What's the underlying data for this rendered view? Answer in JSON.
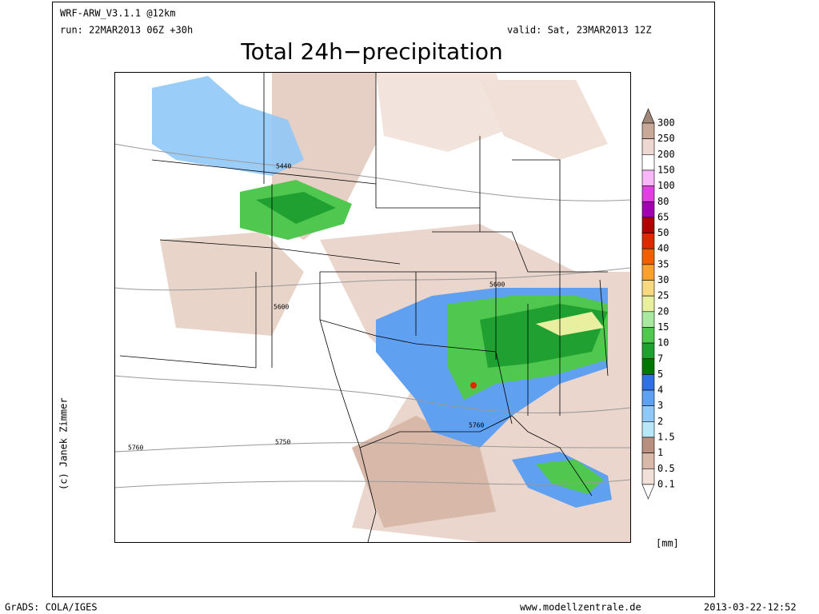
{
  "header": {
    "model": "WRF-ARW_V3.1.1 @12km",
    "run": "run: 22MAR2013 06Z +30h",
    "valid": "valid: Sat, 23MAR2013 12Z"
  },
  "title": "Total 24h−precipitation",
  "contour_labels": [
    "5440",
    "5600",
    "5600",
    "5760",
    "5760",
    "5750"
  ],
  "colorbar": {
    "levels": [
      300,
      250,
      200,
      150,
      100,
      80,
      65,
      50,
      40,
      35,
      30,
      25,
      20,
      15,
      10,
      7,
      5,
      4,
      3,
      2,
      1.5,
      1,
      0.5,
      0.1
    ],
    "colors": [
      "#a08878",
      "#c8a898",
      "#ecd8d0",
      "#ffffff",
      "#f8b8f8",
      "#e040e0",
      "#a000b0",
      "#b00000",
      "#e02800",
      "#f06000",
      "#f8a030",
      "#f8d880",
      "#e8f0a0",
      "#a8e8a0",
      "#50c850",
      "#20a030",
      "#007800",
      "#3070e0",
      "#60a0f0",
      "#90c8f8",
      "#b8e8f8",
      "#b89080",
      "#d8b8a8",
      "#f0e0d8",
      "#ffffff"
    ],
    "unit": "[mm]"
  },
  "credit": "(c) Janek Zimmer",
  "footer": {
    "left": "GrADS: COLA/IGES",
    "center": "www.modellzentrale.de",
    "right": "2013-03-22-12:52"
  }
}
